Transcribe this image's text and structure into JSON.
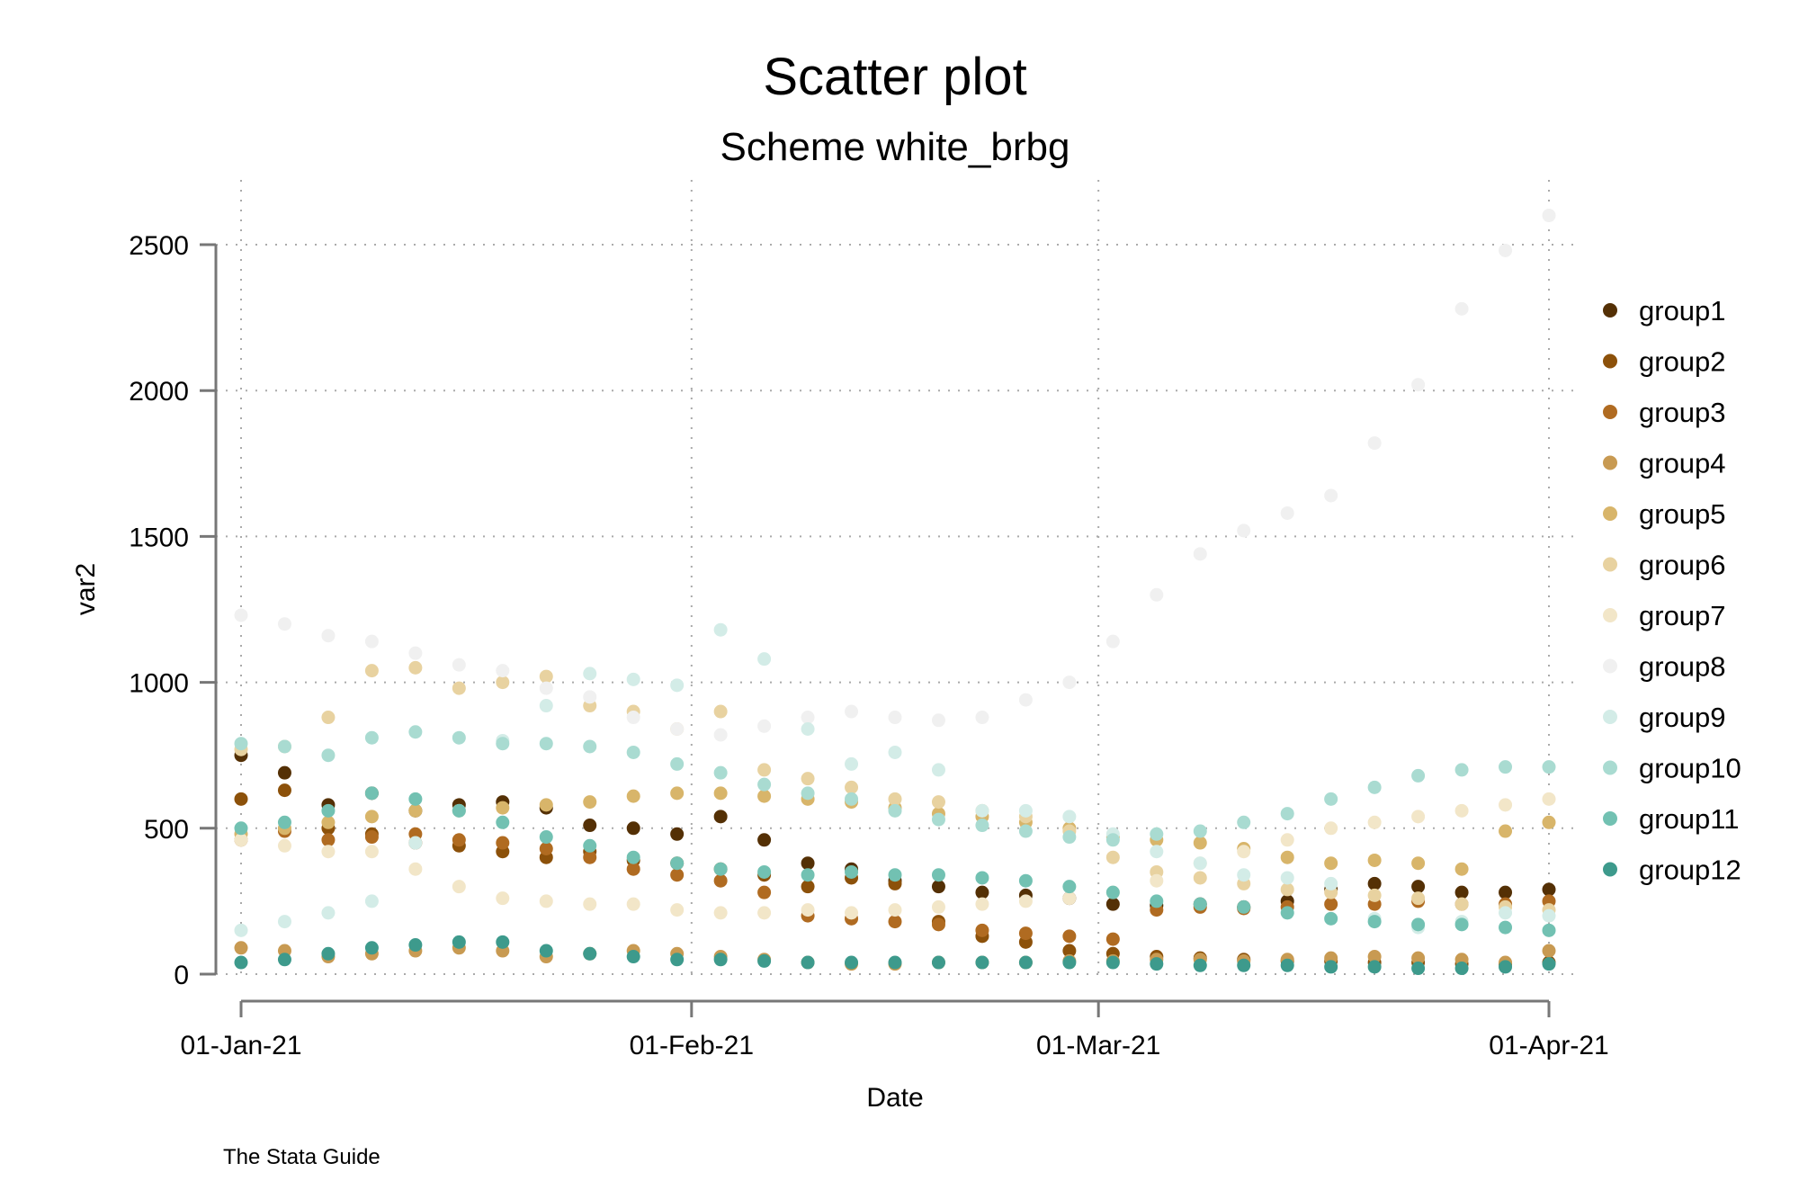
{
  "chart_data": {
    "type": "scatter",
    "title": "Scatter plot",
    "subtitle": "Scheme white_brbg",
    "xlabel": "Date",
    "ylabel": "var2",
    "note": "The Stata Guide",
    "xlim": [
      0,
      90
    ],
    "ylim": [
      0,
      2500
    ],
    "grid": true,
    "legend_position": "right",
    "x_ticks": [
      {
        "value": 0,
        "label": "01-Jan-21"
      },
      {
        "value": 31,
        "label": "01-Feb-21"
      },
      {
        "value": 59,
        "label": "01-Mar-21"
      },
      {
        "value": 90,
        "label": "01-Apr-21"
      }
    ],
    "y_ticks": [
      {
        "value": 0,
        "label": "0"
      },
      {
        "value": 500,
        "label": "500"
      },
      {
        "value": 1000,
        "label": "1000"
      },
      {
        "value": 1500,
        "label": "1500"
      },
      {
        "value": 2000,
        "label": "2000"
      },
      {
        "value": 2500,
        "label": "2500"
      }
    ],
    "x_note": "x values are day offsets from 01-Jan-21; values sampled every 3 days",
    "x": [
      0,
      3,
      6,
      9,
      12,
      15,
      18,
      21,
      24,
      27,
      30,
      33,
      36,
      39,
      42,
      45,
      48,
      51,
      54,
      57,
      60,
      63,
      66,
      69,
      72,
      75,
      78,
      81,
      84,
      87,
      90
    ],
    "series": [
      {
        "name": "group1",
        "color": "#543005",
        "values": [
          750,
          690,
          580,
          620,
          560,
          580,
          590,
          570,
          510,
          500,
          480,
          540,
          460,
          380,
          360,
          320,
          300,
          280,
          270,
          260,
          240,
          235,
          240,
          230,
          250,
          290,
          310,
          300,
          280,
          280,
          290
        ]
      },
      {
        "name": "group2",
        "color": "#8c510a",
        "values": [
          600,
          630,
          500,
          480,
          450,
          440,
          420,
          400,
          420,
          390,
          380,
          360,
          340,
          300,
          330,
          310,
          180,
          130,
          110,
          80,
          70,
          60,
          55,
          50,
          45,
          45,
          40,
          40,
          35,
          35,
          40
        ]
      },
      {
        "name": "group3",
        "color": "#b06b21",
        "values": [
          460,
          490,
          460,
          470,
          480,
          460,
          450,
          430,
          400,
          360,
          340,
          320,
          280,
          200,
          190,
          180,
          170,
          150,
          140,
          130,
          120,
          220,
          230,
          225,
          230,
          240,
          240,
          250,
          240,
          240,
          250
        ]
      },
      {
        "name": "group4",
        "color": "#c89a52",
        "values": [
          90,
          80,
          60,
          70,
          80,
          90,
          80,
          60,
          70,
          80,
          70,
          60,
          50,
          40,
          35,
          35,
          40,
          40,
          40,
          45,
          45,
          50,
          50,
          45,
          50,
          55,
          60,
          55,
          50,
          40,
          80
        ]
      },
      {
        "name": "group5",
        "color": "#d8b56a",
        "values": [
          480,
          500,
          520,
          540,
          560,
          560,
          570,
          580,
          590,
          610,
          620,
          620,
          610,
          600,
          590,
          570,
          550,
          540,
          520,
          500,
          470,
          460,
          450,
          430,
          400,
          380,
          390,
          380,
          360,
          490,
          520
        ]
      },
      {
        "name": "group6",
        "color": "#e8d2a0",
        "values": [
          770,
          780,
          880,
          1040,
          1050,
          980,
          1000,
          1020,
          920,
          900,
          840,
          900,
          700,
          670,
          640,
          600,
          590,
          560,
          540,
          490,
          400,
          350,
          330,
          310,
          290,
          280,
          270,
          260,
          240,
          230,
          220
        ]
      },
      {
        "name": "group7",
        "color": "#f2e6c8",
        "values": [
          460,
          440,
          420,
          420,
          360,
          300,
          260,
          250,
          240,
          240,
          220,
          210,
          210,
          220,
          210,
          220,
          230,
          240,
          250,
          260,
          280,
          320,
          380,
          420,
          460,
          500,
          520,
          540,
          560,
          580,
          600
        ]
      },
      {
        "name": "group8",
        "color": "#f0f0f0",
        "values": [
          1230,
          1200,
          1160,
          1140,
          1100,
          1060,
          1040,
          980,
          950,
          880,
          840,
          820,
          850,
          880,
          900,
          880,
          870,
          880,
          940,
          1000,
          1140,
          1300,
          1440,
          1520,
          1580,
          1640,
          1820,
          2020,
          2280,
          2480,
          2600
        ]
      },
      {
        "name": "group9",
        "color": "#d3ece7",
        "values": [
          150,
          180,
          210,
          250,
          450,
          560,
          800,
          920,
          1030,
          1010,
          990,
          1180,
          1080,
          840,
          720,
          760,
          700,
          560,
          560,
          540,
          480,
          420,
          380,
          340,
          330,
          310,
          190,
          160,
          180,
          210,
          200
        ]
      },
      {
        "name": "group10",
        "color": "#a9dbd1",
        "values": [
          790,
          780,
          750,
          810,
          830,
          810,
          790,
          790,
          780,
          760,
          720,
          690,
          650,
          620,
          600,
          560,
          530,
          510,
          490,
          470,
          460,
          480,
          490,
          520,
          550,
          600,
          640,
          680,
          700,
          710,
          710
        ]
      },
      {
        "name": "group11",
        "color": "#72c1b2",
        "values": [
          500,
          520,
          560,
          620,
          600,
          560,
          520,
          470,
          440,
          400,
          380,
          360,
          350,
          340,
          350,
          340,
          340,
          330,
          320,
          300,
          280,
          250,
          240,
          230,
          210,
          190,
          180,
          170,
          170,
          160,
          150
        ]
      },
      {
        "name": "group12",
        "color": "#3d9a8c",
        "values": [
          40,
          50,
          70,
          90,
          100,
          110,
          110,
          80,
          70,
          60,
          50,
          50,
          45,
          40,
          40,
          40,
          40,
          40,
          40,
          40,
          40,
          35,
          30,
          30,
          30,
          25,
          25,
          20,
          20,
          25,
          35
        ]
      }
    ]
  }
}
